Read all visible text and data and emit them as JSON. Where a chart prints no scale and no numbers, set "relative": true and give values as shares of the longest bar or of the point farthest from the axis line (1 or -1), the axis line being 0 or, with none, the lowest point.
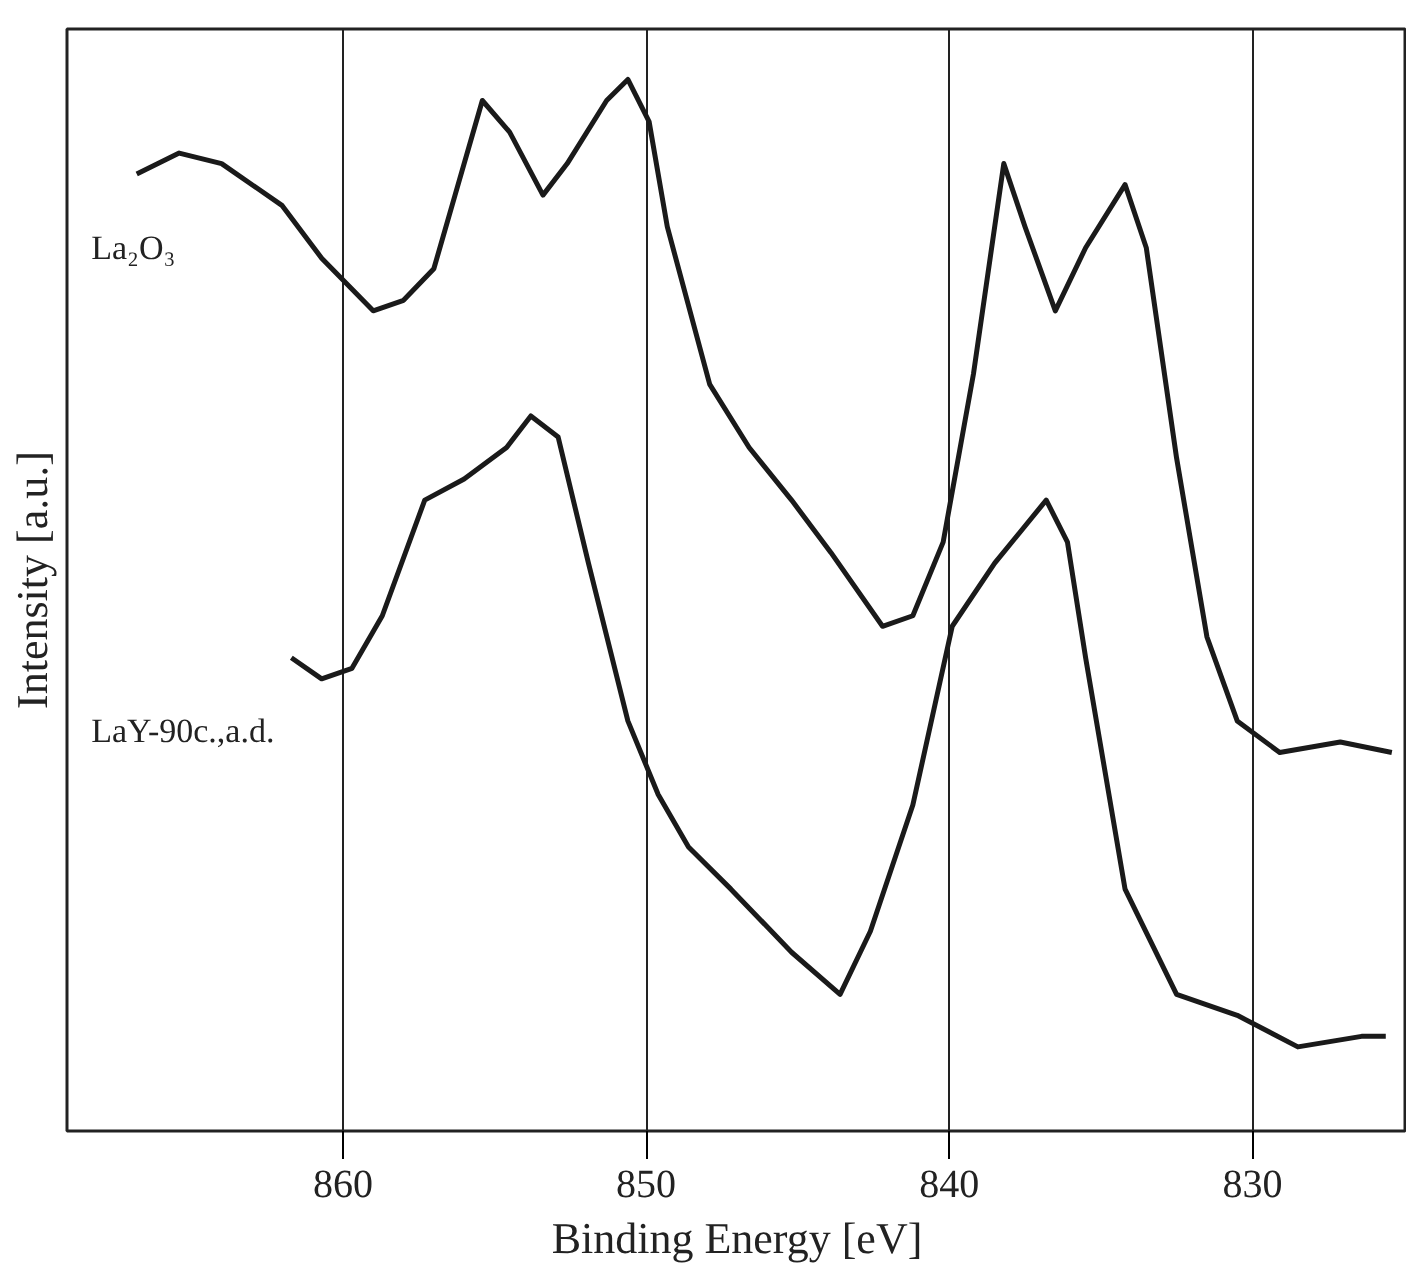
{
  "chart_data": {
    "type": "line",
    "relative": true,
    "xlabel": "Binding Energy [eV]",
    "ylabel": "Intensity [a.u.]",
    "xlim": [
      869.1,
      824.9
    ],
    "xticks": [
      860,
      850,
      840,
      830
    ],
    "grid": "x",
    "tick_labels": "x",
    "marker": "none",
    "line_style": "solid",
    "series": [
      {
        "name": "La₂O₃",
        "color": "#1a1a1a",
        "x": [
          866.8,
          865.4,
          864,
          862,
          860.7,
          859,
          858,
          857,
          856.3,
          855.4,
          854.5,
          853.4,
          852.6,
          851.3,
          850.6,
          849.9,
          849.3,
          847.9,
          846.6,
          845.2,
          843.9,
          842.2,
          841.2,
          840.2,
          839.2,
          838.2,
          837.5,
          836.5,
          835.5,
          834.2,
          833.5,
          832.5,
          831.5,
          830.5,
          829.1,
          827.1,
          825.4
        ],
        "values": [
          0.91,
          0.93,
          0.92,
          0.88,
          0.83,
          0.78,
          0.79,
          0.82,
          0.89,
          0.98,
          0.95,
          0.89,
          0.92,
          0.98,
          1.0,
          0.96,
          0.86,
          0.71,
          0.65,
          0.6,
          0.55,
          0.48,
          0.49,
          0.56,
          0.72,
          0.92,
          0.86,
          0.78,
          0.84,
          0.9,
          0.84,
          0.64,
          0.47,
          0.39,
          0.36,
          0.37,
          0.36
        ]
      },
      {
        "name": "LaY-90c.,a.d.",
        "color": "#1a1a1a",
        "x": [
          861.7,
          860.7,
          859.7,
          858.7,
          857.3,
          856,
          854.6,
          853.8,
          852.9,
          851.9,
          850.6,
          849.6,
          848.6,
          847.2,
          845.2,
          843.6,
          842.6,
          841.2,
          839.9,
          838.5,
          836.8,
          836.1,
          835.5,
          834.2,
          832.5,
          830.5,
          828.5,
          826.4,
          825.6
        ],
        "values": [
          0.45,
          0.43,
          0.44,
          0.49,
          0.6,
          0.62,
          0.65,
          0.68,
          0.66,
          0.54,
          0.39,
          0.32,
          0.27,
          0.23,
          0.17,
          0.13,
          0.19,
          0.31,
          0.48,
          0.54,
          0.6,
          0.56,
          0.45,
          0.23,
          0.13,
          0.11,
          0.08,
          0.09,
          0.09
        ]
      }
    ]
  }
}
